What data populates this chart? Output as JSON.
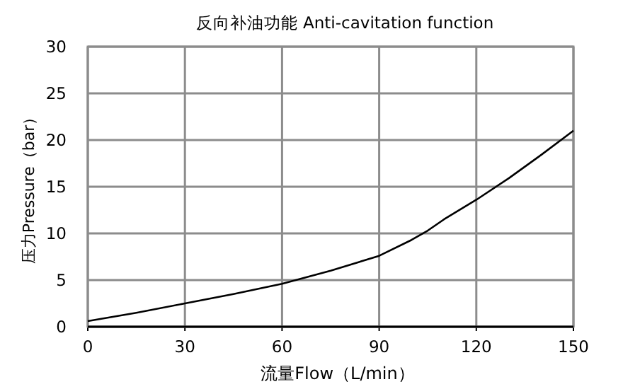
{
  "chart_data": {
    "type": "line",
    "title": "反向补油功能 Anti-cavitation function",
    "xlabel": "流量Flow（L/min）",
    "ylabel": "压力Pressure（bar）",
    "series": [
      {
        "color": "#000000",
        "x": [
          0,
          15,
          30,
          45,
          60,
          75,
          90,
          100,
          105,
          110,
          120,
          130,
          140,
          150
        ],
        "values": [
          0.6,
          1.5,
          2.5,
          3.5,
          4.6,
          6,
          7.6,
          9.3,
          10.3,
          11.5,
          13.6,
          15.9,
          18.4,
          21
        ]
      }
    ],
    "xlim": [
      0,
      150
    ],
    "xticks": [
      0,
      30,
      60,
      90,
      120,
      150
    ],
    "ylim": [
      0,
      30
    ],
    "yticks": [
      0,
      5,
      10,
      15,
      20,
      25,
      30
    ],
    "grid": true,
    "marker": "none",
    "line_style": "solid"
  }
}
